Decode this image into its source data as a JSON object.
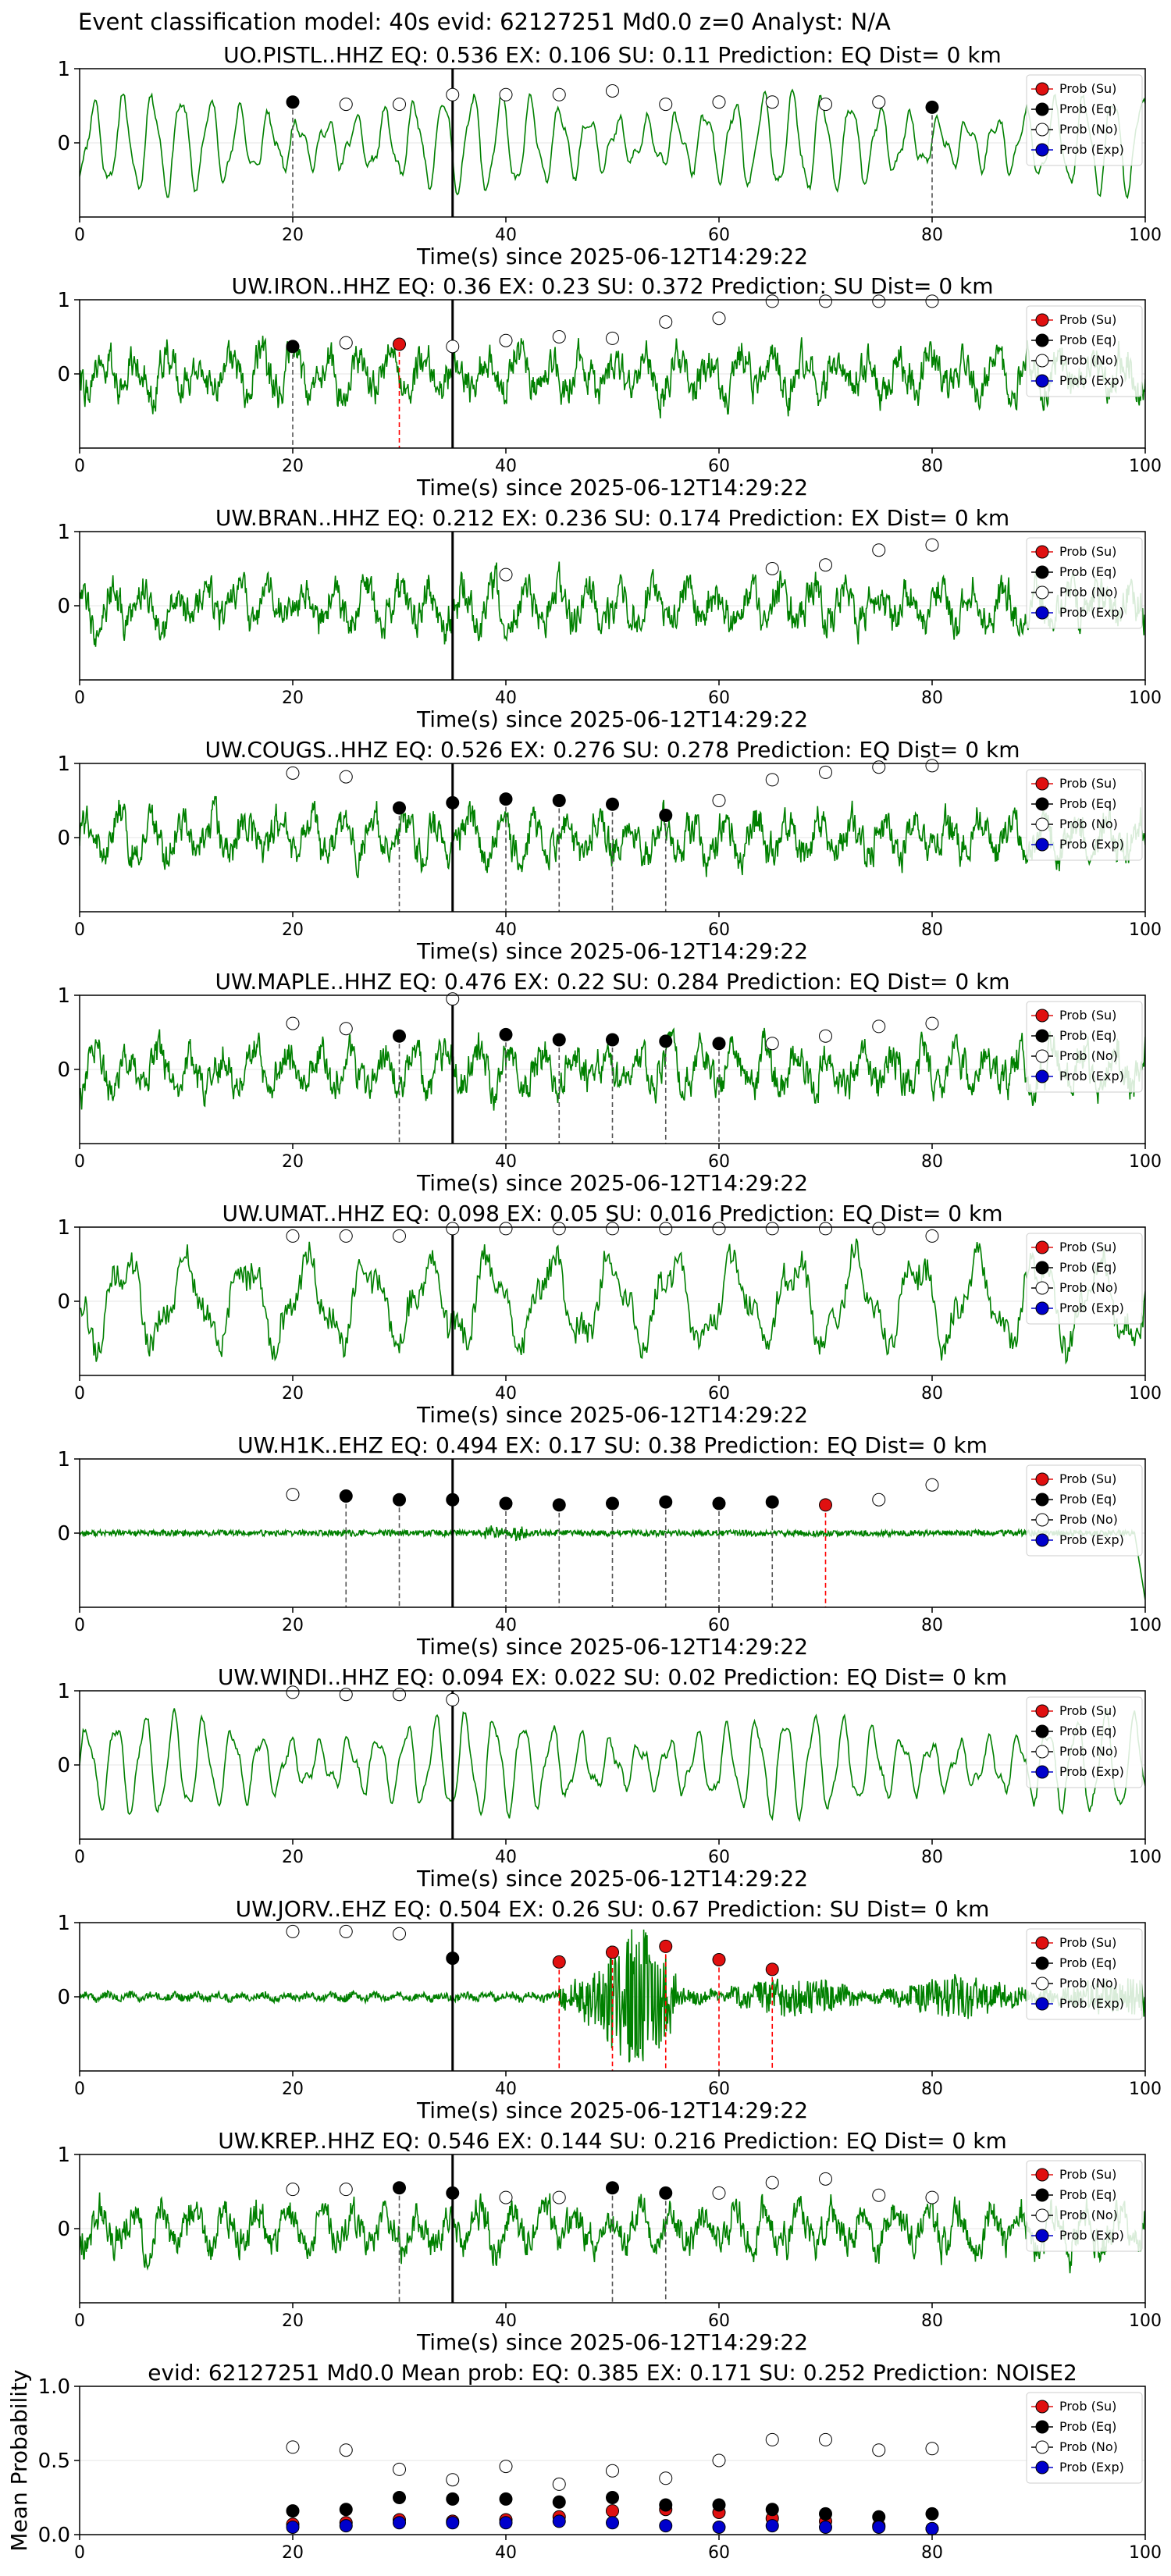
{
  "figure": {
    "suptitle": "Event classification model: 40s evid: 62127251 Md0.0 z=0 Analyst: N/A",
    "xlabel": "Time(s) since 2025-06-12T14:29:22",
    "colors": {
      "waveform": "#008000",
      "eq": "#000000",
      "su": "#e01010",
      "no": "#ffffff",
      "exp": "#0000cc",
      "pick": "#000000",
      "dash_eq": "#555555",
      "dash_su": "#ff0000"
    },
    "legend": [
      "Prob (Su)",
      "Prob (Eq)",
      "Prob (No)",
      "Prob (Exp)"
    ],
    "legend_position": "top-right"
  },
  "chart_data": [
    {
      "type": "line",
      "title": "UO.PISTL..HHZ   EQ: 0.536  EX: 0.106  SU: 0.11   Prediction: EQ    Dist= 0 km",
      "xlim": [
        0,
        100
      ],
      "ylim": [
        -1,
        1
      ],
      "xticks": [
        0,
        20,
        40,
        60,
        80,
        100
      ],
      "yticks": [
        0,
        1
      ],
      "pick_time": 35,
      "waveform": "periodic",
      "seed": 11,
      "windows_x": [
        20,
        25,
        30,
        35,
        40,
        45,
        50,
        55,
        60,
        65,
        70,
        75,
        80
      ],
      "class": [
        "EQ",
        "NO",
        "NO",
        "NO",
        "NO",
        "NO",
        "NO",
        "NO",
        "NO",
        "NO",
        "NO",
        "NO",
        "EQ"
      ],
      "marker_y": [
        0.55,
        0.52,
        0.52,
        0.65,
        0.65,
        0.65,
        0.7,
        0.52,
        0.55,
        0.55,
        0.52,
        0.55,
        0.48
      ]
    },
    {
      "type": "line",
      "title": "UW.IRON..HHZ   EQ: 0.36  EX: 0.23  SU: 0.372   Prediction: SU    Dist= 0 km",
      "xlim": [
        0,
        100
      ],
      "ylim": [
        -1,
        1
      ],
      "xticks": [
        0,
        20,
        40,
        60,
        80,
        100
      ],
      "yticks": [
        0,
        1
      ],
      "pick_time": 35,
      "waveform": "noisy",
      "seed": 22,
      "windows_x": [
        20,
        25,
        30,
        35,
        40,
        45,
        50,
        55,
        60,
        65,
        70,
        75,
        80
      ],
      "class": [
        "EQ",
        "NO",
        "SU",
        "NO",
        "NO",
        "NO",
        "NO",
        "NO",
        "NO",
        "NO",
        "NO",
        "NO",
        "NO"
      ],
      "marker_y": [
        0.37,
        0.42,
        0.4,
        0.37,
        0.45,
        0.5,
        0.48,
        0.7,
        0.75,
        0.98,
        0.98,
        0.98,
        0.98
      ]
    },
    {
      "type": "line",
      "title": "UW.BRAN..HHZ   EQ: 0.212  EX: 0.236  SU: 0.174   Prediction: EX    Dist= 0 km",
      "xlim": [
        0,
        100
      ],
      "ylim": [
        -1,
        1
      ],
      "xticks": [
        0,
        20,
        40,
        60,
        80,
        100
      ],
      "yticks": [
        0,
        1
      ],
      "pick_time": 35,
      "waveform": "noisy",
      "seed": 33,
      "windows_x": [
        40,
        65,
        70,
        75,
        80
      ],
      "class": [
        "NO",
        "NO",
        "NO",
        "NO",
        "NO"
      ],
      "marker_y": [
        0.42,
        0.5,
        0.55,
        0.75,
        0.82
      ]
    },
    {
      "type": "line",
      "title": "UW.COUGS..HHZ   EQ: 0.526  EX: 0.276  SU: 0.278   Prediction: EQ    Dist= 0 km",
      "xlim": [
        0,
        100
      ],
      "ylim": [
        -1,
        1
      ],
      "xticks": [
        0,
        20,
        40,
        60,
        80,
        100
      ],
      "yticks": [
        0,
        1
      ],
      "pick_time": 35,
      "waveform": "noisy",
      "seed": 44,
      "windows_x": [
        20,
        25,
        30,
        35,
        40,
        45,
        50,
        55,
        60,
        65,
        70,
        75,
        80
      ],
      "class": [
        "NO",
        "NO",
        "EQ",
        "EQ",
        "EQ",
        "EQ",
        "EQ",
        "EQ",
        "NO",
        "NO",
        "NO",
        "NO",
        "NO"
      ],
      "marker_y": [
        0.87,
        0.82,
        0.4,
        0.47,
        0.52,
        0.5,
        0.45,
        0.3,
        0.5,
        0.78,
        0.88,
        0.95,
        0.97
      ]
    },
    {
      "type": "line",
      "title": "UW.MAPLE..HHZ   EQ: 0.476  EX: 0.22  SU: 0.284   Prediction: EQ    Dist= 0 km",
      "xlim": [
        0,
        100
      ],
      "ylim": [
        -1,
        1
      ],
      "xticks": [
        0,
        20,
        40,
        60,
        80,
        100
      ],
      "yticks": [
        0,
        1
      ],
      "pick_time": 35,
      "waveform": "noisy",
      "seed": 55,
      "windows_x": [
        20,
        25,
        30,
        35,
        40,
        45,
        50,
        55,
        60,
        65,
        70,
        75,
        80
      ],
      "class": [
        "NO",
        "NO",
        "EQ",
        "NO",
        "EQ",
        "EQ",
        "EQ",
        "EQ",
        "EQ",
        "NO",
        "NO",
        "NO",
        "NO"
      ],
      "marker_y": [
        0.62,
        0.55,
        0.45,
        0.95,
        0.47,
        0.4,
        0.4,
        0.38,
        0.35,
        0.35,
        0.45,
        0.58,
        0.62
      ]
    },
    {
      "type": "line",
      "title": "UW.UMAT..HHZ   EQ: 0.098  EX: 0.05  SU: 0.016   Prediction: EQ    Dist= 0 km",
      "xlim": [
        0,
        100
      ],
      "ylim": [
        -1,
        1
      ],
      "xticks": [
        0,
        20,
        40,
        60,
        80,
        100
      ],
      "yticks": [
        0,
        1
      ],
      "pick_time": 35,
      "waveform": "slow",
      "seed": 66,
      "windows_x": [
        20,
        25,
        30,
        35,
        40,
        45,
        50,
        55,
        60,
        65,
        70,
        75,
        80
      ],
      "class": [
        "NO",
        "NO",
        "NO",
        "NO",
        "NO",
        "NO",
        "NO",
        "NO",
        "NO",
        "NO",
        "NO",
        "NO",
        "NO"
      ],
      "marker_y": [
        0.88,
        0.88,
        0.88,
        0.98,
        0.98,
        0.98,
        0.98,
        0.98,
        0.98,
        0.98,
        0.98,
        0.98,
        0.88
      ]
    },
    {
      "type": "line",
      "title": "UW.H1K..EHZ   EQ: 0.494  EX: 0.17  SU: 0.38   Prediction: EQ    Dist= 0 km",
      "xlim": [
        0,
        100
      ],
      "ylim": [
        -1,
        1
      ],
      "xticks": [
        0,
        20,
        40,
        60,
        80,
        100
      ],
      "yticks": [
        0,
        1
      ],
      "pick_time": 35,
      "waveform": "quiet",
      "seed": 77,
      "windows_x": [
        20,
        25,
        30,
        35,
        40,
        45,
        50,
        55,
        60,
        65,
        70,
        75,
        80
      ],
      "class": [
        "NO",
        "EQ",
        "EQ",
        "EQ",
        "EQ",
        "EQ",
        "EQ",
        "EQ",
        "EQ",
        "EQ",
        "SU",
        "NO",
        "NO"
      ],
      "marker_y": [
        0.52,
        0.5,
        0.45,
        0.45,
        0.4,
        0.38,
        0.4,
        0.42,
        0.4,
        0.42,
        0.38,
        0.45,
        0.65
      ]
    },
    {
      "type": "line",
      "title": "UW.WINDI..HHZ   EQ: 0.094  EX: 0.022  SU: 0.02   Prediction: EQ    Dist= 0 km",
      "xlim": [
        0,
        100
      ],
      "ylim": [
        -1,
        1
      ],
      "xticks": [
        0,
        20,
        40,
        60,
        80,
        100
      ],
      "yticks": [
        0,
        1
      ],
      "pick_time": 35,
      "waveform": "periodic",
      "seed": 88,
      "windows_x": [
        20,
        25,
        30,
        35
      ],
      "class": [
        "NO",
        "NO",
        "NO",
        "NO"
      ],
      "marker_y": [
        0.98,
        0.95,
        0.95,
        0.88
      ]
    },
    {
      "type": "line",
      "title": "UW.JORV..EHZ   EQ: 0.504  EX: 0.26  SU: 0.67   Prediction: SU    Dist= 0 km",
      "xlim": [
        0,
        100
      ],
      "ylim": [
        -1,
        1
      ],
      "xticks": [
        0,
        20,
        40,
        60,
        80,
        100
      ],
      "yticks": [
        0,
        1
      ],
      "pick_time": 35,
      "waveform": "burst",
      "seed": 99,
      "windows_x": [
        20,
        25,
        30,
        35,
        45,
        50,
        55,
        60,
        65
      ],
      "class": [
        "NO",
        "NO",
        "NO",
        "EQ",
        "SU",
        "SU",
        "SU",
        "SU",
        "SU"
      ],
      "marker_y": [
        0.88,
        0.88,
        0.85,
        0.52,
        0.47,
        0.6,
        0.68,
        0.5,
        0.37
      ]
    },
    {
      "type": "line",
      "title": "UW.KREP..HHZ   EQ: 0.546  EX: 0.144  SU: 0.216   Prediction: EQ    Dist= 0 km",
      "xlim": [
        0,
        100
      ],
      "ylim": [
        -1,
        1
      ],
      "xticks": [
        0,
        20,
        40,
        60,
        80,
        100
      ],
      "yticks": [
        0,
        1
      ],
      "pick_time": 35,
      "waveform": "noisy",
      "seed": 111,
      "windows_x": [
        20,
        25,
        30,
        35,
        40,
        45,
        50,
        55,
        60,
        65,
        70,
        75,
        80
      ],
      "class": [
        "NO",
        "NO",
        "EQ",
        "EQ",
        "NO",
        "NO",
        "EQ",
        "EQ",
        "NO",
        "NO",
        "NO",
        "NO",
        "NO"
      ],
      "marker_y": [
        0.53,
        0.53,
        0.55,
        0.48,
        0.42,
        0.42,
        0.55,
        0.48,
        0.48,
        0.62,
        0.67,
        0.45,
        0.42
      ]
    },
    {
      "type": "scatter",
      "title": "evid: 62127251  Md0.0   Mean prob:   EQ: 0.385  EX: 0.171  SU: 0.252   Prediction: NOISE2",
      "ylabel": "Mean Probability",
      "xlim": [
        0,
        100
      ],
      "ylim": [
        0,
        1
      ],
      "xticks": [
        0,
        20,
        40,
        60,
        80,
        100
      ],
      "yticks": [
        0.0,
        0.5,
        1.0
      ],
      "x": [
        20,
        25,
        30,
        35,
        40,
        45,
        50,
        55,
        60,
        65,
        70,
        75,
        80
      ],
      "series": [
        {
          "name": "Prob (Su)",
          "values": [
            0.07,
            0.08,
            0.1,
            0.09,
            0.1,
            0.12,
            0.16,
            0.17,
            0.15,
            0.11,
            0.09,
            0.06,
            0.04
          ]
        },
        {
          "name": "Prob (Eq)",
          "values": [
            0.16,
            0.17,
            0.25,
            0.24,
            0.24,
            0.22,
            0.25,
            0.2,
            0.2,
            0.17,
            0.14,
            0.12,
            0.14
          ]
        },
        {
          "name": "Prob (No)",
          "values": [
            0.59,
            0.57,
            0.44,
            0.37,
            0.46,
            0.34,
            0.43,
            0.38,
            0.5,
            0.64,
            0.64,
            0.57,
            0.58
          ]
        },
        {
          "name": "Prob (Exp)",
          "values": [
            0.05,
            0.06,
            0.08,
            0.08,
            0.08,
            0.09,
            0.08,
            0.06,
            0.05,
            0.06,
            0.05,
            0.05,
            0.04
          ]
        }
      ]
    }
  ]
}
